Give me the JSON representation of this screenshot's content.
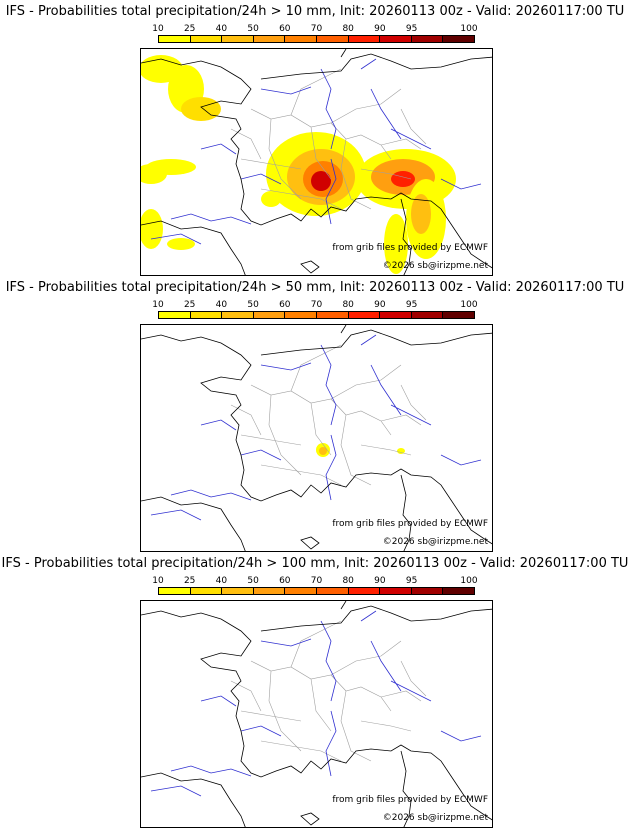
{
  "panels": [
    {
      "title": "IFS - Probabilities total precipitation/24h > 10 mm, Init: 20260113 00z - Valid: 20260117:00 TU",
      "has_precip": "heavy"
    },
    {
      "title": "IFS - Probabilities total precipitation/24h > 50 mm, Init: 20260113 00z - Valid: 20260117:00 TU",
      "has_precip": "light"
    },
    {
      "title": "IFS - Probabilities total precipitation/24h > 100 mm, Init: 20260113 00z - Valid: 20260117:00 TU",
      "has_precip": "none"
    }
  ],
  "colorbar": {
    "ticks": [
      "10",
      "25",
      "40",
      "50",
      "60",
      "70",
      "80",
      "90",
      "95",
      "100"
    ],
    "colors": [
      "#ffff00",
      "#ffdf00",
      "#ffbf10",
      "#ff9f10",
      "#ff8000",
      "#ff5f00",
      "#ff2000",
      "#d00000",
      "#a00000",
      "#600000"
    ]
  },
  "credits": {
    "source": "from grib files provided by ECMWF",
    "copyright": "©2026 sb@irizpme.net"
  },
  "colors": {
    "coast": "#000000",
    "rivers": "#3030d0",
    "borders": "#a0a0a0"
  }
}
